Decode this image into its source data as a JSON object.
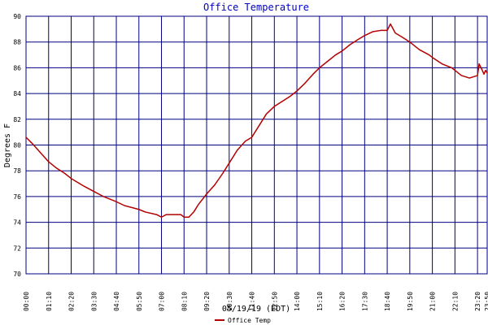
{
  "page": {
    "title": "Office Temperature"
  },
  "colors": {
    "background": "#ffffff",
    "grid": "#000080",
    "title": "#0000c8",
    "series": "#b40000",
    "text": "#000000"
  },
  "chart_data": {
    "type": "line",
    "title": "Office Temperature",
    "xlabel": "05/19/19 (EDT)",
    "ylabel": "Degrees F",
    "x_start": "00:00",
    "x_end": "23:50",
    "ylim": [
      70,
      90
    ],
    "grid": true,
    "legend_placement": "bottom-center",
    "x_tick_labels": [
      "00:00",
      "01:10",
      "02:20",
      "03:30",
      "04:40",
      "05:50",
      "07:00",
      "08:10",
      "09:20",
      "10:30",
      "11:40",
      "12:50",
      "14:00",
      "15:10",
      "16:20",
      "17:30",
      "18:40",
      "19:50",
      "21:00",
      "22:10",
      "23:20",
      "23:50"
    ],
    "y_tick_labels": [
      "70",
      "72",
      "74",
      "76",
      "78",
      "80",
      "82",
      "84",
      "86",
      "88",
      "90"
    ],
    "series": [
      {
        "name": "Office Temp",
        "x": [
          "00:00",
          "00:20",
          "00:45",
          "01:10",
          "01:35",
          "02:00",
          "02:20",
          "03:00",
          "03:30",
          "04:00",
          "04:40",
          "05:05",
          "05:50",
          "06:10",
          "06:45",
          "07:00",
          "07:15",
          "07:40",
          "08:00",
          "08:10",
          "08:25",
          "08:40",
          "08:55",
          "09:20",
          "09:45",
          "10:10",
          "10:30",
          "10:55",
          "11:20",
          "11:40",
          "12:00",
          "12:25",
          "12:50",
          "13:15",
          "13:40",
          "14:00",
          "14:25",
          "14:50",
          "15:10",
          "15:35",
          "16:00",
          "16:20",
          "16:45",
          "17:10",
          "17:30",
          "17:55",
          "18:20",
          "18:40",
          "18:50",
          "19:05",
          "19:25",
          "19:50",
          "20:20",
          "20:50",
          "21:00",
          "21:30",
          "22:00",
          "22:10",
          "22:30",
          "22:55",
          "23:20",
          "23:25",
          "23:33",
          "23:40",
          "23:45",
          "23:50"
        ],
        "y": [
          80.6,
          80.1,
          79.4,
          78.7,
          78.2,
          77.8,
          77.4,
          76.8,
          76.4,
          76.0,
          75.6,
          75.3,
          75.0,
          74.8,
          74.6,
          74.4,
          74.6,
          74.6,
          74.6,
          74.4,
          74.4,
          74.8,
          75.4,
          76.2,
          76.9,
          77.8,
          78.6,
          79.6,
          80.3,
          80.6,
          81.4,
          82.4,
          83.0,
          83.4,
          83.8,
          84.2,
          84.8,
          85.5,
          86.0,
          86.5,
          87.0,
          87.3,
          87.8,
          88.2,
          88.5,
          88.8,
          88.9,
          88.9,
          89.4,
          88.7,
          88.4,
          88.0,
          87.4,
          87.0,
          86.8,
          86.3,
          86.0,
          85.8,
          85.4,
          85.2,
          85.4,
          86.3,
          85.9,
          85.5,
          85.8,
          85.6
        ]
      }
    ]
  }
}
